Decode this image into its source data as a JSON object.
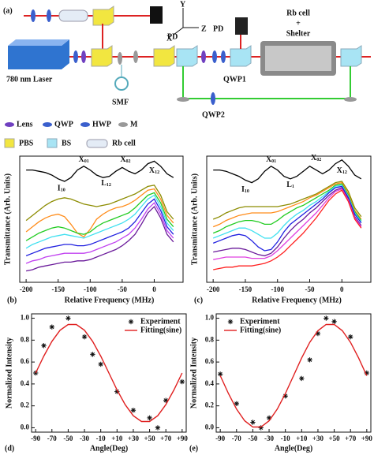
{
  "diagram": {
    "label": "(a)",
    "pd_top": "PD",
    "pd_right": "PD",
    "laser": "780 nm Laser",
    "smf": "SMF",
    "axis_y": "Y",
    "axis_x": "X",
    "axis_z": "Z",
    "rb_cell": "Rb cell",
    "plus": "+",
    "shelter": "Shelter",
    "qwp1": "QWP1",
    "qwp2": "QWP2",
    "legend": [
      "Lens",
      "QWP",
      "HWP",
      "M",
      "PBS",
      "BS",
      "Rb cell"
    ]
  },
  "chart_data": [
    {
      "type": "line",
      "label": "(b)",
      "xlabel": "Relative Frequency (MHz)",
      "ylabel": "Transmittance (Arb. Units)",
      "x": [
        -200,
        -190,
        -180,
        -170,
        -160,
        -150,
        -140,
        -130,
        -120,
        -110,
        -100,
        -90,
        -80,
        -70,
        -60,
        -50,
        -40,
        -30,
        -20,
        -10,
        0,
        10,
        20,
        30
      ],
      "xlim": [
        -210,
        45
      ],
      "xticks": [
        -200,
        -150,
        -100,
        -50,
        0
      ],
      "ylim": [
        0,
        10
      ],
      "series": [
        {
          "color": "#000000",
          "values": [
            8.9,
            8.9,
            8.8,
            8.7,
            8.5,
            8.2,
            8.0,
            8.3,
            8.9,
            9.2,
            8.9,
            8.5,
            8.3,
            8.4,
            8.8,
            9.1,
            8.8,
            8.6,
            8.9,
            9.4,
            9.6,
            9.2,
            8.6,
            8.3
          ]
        },
        {
          "color": "#8c8c00",
          "values": [
            4.9,
            5.3,
            5.7,
            6.1,
            6.4,
            6.6,
            6.7,
            6.6,
            6.4,
            6.2,
            6.1,
            6.0,
            6.1,
            6.2,
            6.4,
            6.6,
            6.8,
            7.0,
            7.3,
            7.6,
            7.7,
            6.9,
            5.6,
            5.0
          ]
        },
        {
          "color": "#ff8c1a",
          "values": [
            4.0,
            4.4,
            4.8,
            5.1,
            5.3,
            5.4,
            5.2,
            4.6,
            3.9,
            3.6,
            4.2,
            5.0,
            5.4,
            5.7,
            5.9,
            6.0,
            6.2,
            6.5,
            6.9,
            7.3,
            7.4,
            6.6,
            5.3,
            4.7
          ]
        },
        {
          "color": "#22cc22",
          "values": [
            3.3,
            3.6,
            3.9,
            4.1,
            4.3,
            4.4,
            4.3,
            4.1,
            3.9,
            3.8,
            4.0,
            4.4,
            4.7,
            4.9,
            5.1,
            5.3,
            5.5,
            5.9,
            6.4,
            6.9,
            7.1,
            6.3,
            5.0,
            4.4
          ]
        },
        {
          "color": "#40e0f0",
          "values": [
            2.7,
            3.0,
            3.2,
            3.4,
            3.6,
            3.7,
            3.8,
            3.7,
            3.6,
            3.5,
            3.7,
            3.9,
            4.1,
            4.3,
            4.5,
            4.7,
            5.0,
            5.4,
            6.0,
            6.6,
            6.9,
            6.0,
            4.7,
            4.1
          ]
        },
        {
          "color": "#2020e0",
          "values": [
            2.1,
            2.3,
            2.5,
            2.7,
            2.8,
            2.9,
            3.0,
            3.0,
            2.9,
            2.9,
            3.0,
            3.2,
            3.4,
            3.6,
            3.8,
            4.0,
            4.3,
            4.8,
            5.5,
            6.2,
            6.6,
            5.7,
            4.4,
            3.8
          ]
        },
        {
          "color": "#c040f0",
          "values": [
            1.5,
            1.7,
            1.8,
            2.0,
            2.1,
            2.2,
            2.3,
            2.3,
            2.3,
            2.3,
            2.4,
            2.6,
            2.8,
            3.0,
            3.2,
            3.5,
            3.8,
            4.3,
            5.0,
            5.8,
            6.3,
            5.4,
            4.1,
            3.5
          ]
        },
        {
          "color": "#6a1a9a",
          "values": [
            0.9,
            1.0,
            1.2,
            1.3,
            1.4,
            1.5,
            1.6,
            1.6,
            1.7,
            1.7,
            1.8,
            2.0,
            2.2,
            2.4,
            2.6,
            2.9,
            3.3,
            3.8,
            4.6,
            5.5,
            6.0,
            5.1,
            3.8,
            3.2
          ]
        }
      ],
      "annotations": [
        {
          "text": "I",
          "sub": "10",
          "x": -145,
          "y": 7.4
        },
        {
          "text": "X",
          "sub": "01",
          "x": -110,
          "y": 9.7
        },
        {
          "text": "L",
          "sub": "12",
          "x": -75,
          "y": 7.8
        },
        {
          "text": "X",
          "sub": "02",
          "x": -45,
          "y": 9.7
        },
        {
          "text": "X",
          "sub": "12",
          "x": 0,
          "y": 8.8
        }
      ]
    },
    {
      "type": "line",
      "label": "(c)",
      "xlabel": "Relative Frequency (MHz)",
      "ylabel": "Transmittance (Arb. Units)",
      "x": [
        -200,
        -190,
        -180,
        -170,
        -160,
        -150,
        -140,
        -130,
        -120,
        -110,
        -100,
        -90,
        -80,
        -70,
        -60,
        -50,
        -40,
        -30,
        -20,
        -10,
        0,
        10,
        20,
        30
      ],
      "xlim": [
        -210,
        45
      ],
      "xticks": [
        -200,
        -150,
        -100,
        -50,
        0
      ],
      "ylim": [
        0,
        10
      ],
      "series": [
        {
          "color": "#000000",
          "values": [
            8.9,
            8.9,
            8.8,
            8.6,
            8.4,
            8.1,
            7.9,
            8.2,
            8.8,
            9.2,
            8.9,
            8.4,
            8.2,
            8.4,
            8.8,
            9.2,
            8.9,
            8.6,
            8.9,
            9.4,
            9.7,
            9.2,
            8.5,
            8.2
          ]
        },
        {
          "color": "#8c8c00",
          "values": [
            5.0,
            5.2,
            5.5,
            5.7,
            5.9,
            6.0,
            6.0,
            6.0,
            6.0,
            6.0,
            6.0,
            6.1,
            6.2,
            6.4,
            6.6,
            6.8,
            7.0,
            7.3,
            7.6,
            7.9,
            8.0,
            7.2,
            5.9,
            5.2
          ]
        },
        {
          "color": "#ff8c1a",
          "values": [
            4.4,
            4.6,
            4.9,
            5.1,
            5.3,
            5.4,
            5.5,
            5.5,
            5.5,
            5.5,
            5.6,
            5.8,
            6.0,
            6.2,
            6.4,
            6.7,
            6.9,
            7.2,
            7.5,
            7.8,
            7.9,
            7.0,
            5.7,
            5.0
          ]
        },
        {
          "color": "#22cc22",
          "values": [
            3.9,
            4.1,
            4.4,
            4.6,
            4.8,
            4.9,
            4.9,
            4.8,
            4.6,
            4.6,
            4.9,
            5.3,
            5.6,
            5.9,
            6.1,
            6.4,
            6.7,
            7.0,
            7.3,
            7.7,
            7.8,
            6.9,
            5.6,
            4.9
          ]
        },
        {
          "color": "#40e0f0",
          "values": [
            3.5,
            3.7,
            3.9,
            4.1,
            4.3,
            4.3,
            4.1,
            3.8,
            3.5,
            3.5,
            3.9,
            4.5,
            5.0,
            5.4,
            5.7,
            6.1,
            6.4,
            6.8,
            7.2,
            7.6,
            7.7,
            6.8,
            5.5,
            4.8
          ]
        },
        {
          "color": "#2020e0",
          "values": [
            3.1,
            3.3,
            3.5,
            3.7,
            3.8,
            3.7,
            3.3,
            2.8,
            2.5,
            2.6,
            3.2,
            4.0,
            4.6,
            5.0,
            5.4,
            5.8,
            6.2,
            6.6,
            7.1,
            7.5,
            7.6,
            6.7,
            5.4,
            4.7
          ]
        },
        {
          "color": "#6a1a9a",
          "values": [
            2.4,
            2.5,
            2.6,
            2.7,
            2.7,
            2.6,
            2.4,
            2.2,
            2.1,
            2.3,
            2.8,
            3.5,
            4.1,
            4.6,
            5.0,
            5.5,
            5.9,
            6.4,
            6.9,
            7.3,
            7.5,
            6.6,
            5.2,
            4.5
          ]
        },
        {
          "color": "#e040e0",
          "values": [
            1.8,
            1.9,
            2.0,
            2.0,
            2.0,
            2.0,
            1.9,
            1.9,
            1.9,
            2.1,
            2.5,
            3.0,
            3.5,
            4.0,
            4.5,
            5.0,
            5.5,
            6.1,
            6.7,
            7.2,
            7.4,
            6.5,
            5.1,
            4.4
          ]
        },
        {
          "color": "#ff2020",
          "values": [
            1.0,
            1.1,
            1.2,
            1.2,
            1.3,
            1.3,
            1.3,
            1.4,
            1.5,
            1.7,
            2.0,
            2.4,
            2.9,
            3.4,
            3.9,
            4.5,
            5.1,
            5.8,
            6.5,
            7.0,
            7.3,
            6.4,
            5.0,
            4.3
          ]
        }
      ],
      "annotations": [
        {
          "text": "I",
          "sub": "10",
          "x": -150,
          "y": 7.3
        },
        {
          "text": "X",
          "sub": "01",
          "x": -110,
          "y": 9.7
        },
        {
          "text": "L",
          "sub": "1",
          "x": -80,
          "y": 7.7
        },
        {
          "text": "X",
          "sub": "02",
          "x": -40,
          "y": 9.8
        },
        {
          "text": "X",
          "sub": "12",
          "x": 0,
          "y": 8.8
        }
      ]
    },
    {
      "type": "scatter",
      "label": "(d)",
      "xlabel": "Angle(Deg)",
      "ylabel": "Normalized Intensity",
      "legend": "upper right",
      "xlim": [
        -95,
        95
      ],
      "ylim": [
        -0.04,
        1.04
      ],
      "xticks": [
        -90,
        -70,
        -50,
        -30,
        -10,
        {
          "value": 10,
          "label": "+10"
        },
        {
          "value": 30,
          "label": "+30"
        },
        {
          "value": 50,
          "label": "+50"
        },
        {
          "value": 70,
          "label": "+70"
        },
        {
          "value": 90,
          "label": "+90"
        }
      ],
      "yticks": [
        {
          "value": 0,
          "label": "0.0"
        },
        0.2,
        0.4,
        0.6,
        0.8,
        {
          "value": 1,
          "label": "1.0"
        }
      ],
      "series": [
        {
          "name": "Experiment",
          "type": "scatter",
          "color": "#111111",
          "x": [
            -90,
            -80,
            -70,
            -50,
            -30,
            -20,
            -10,
            10,
            30,
            50,
            60,
            70,
            90
          ],
          "values": [
            0.5,
            0.75,
            0.92,
            1.0,
            0.83,
            0.67,
            0.58,
            0.33,
            0.16,
            0.09,
            0.0,
            0.25,
            0.42
          ]
        },
        {
          "name": "Fitting(sine)",
          "type": "line",
          "color": "#e02020",
          "x": [
            -90,
            -80,
            -70,
            -60,
            -50,
            -40,
            -30,
            -20,
            -10,
            0,
            10,
            20,
            30,
            40,
            50,
            60,
            70,
            80,
            90
          ],
          "values": [
            0.5,
            0.654,
            0.789,
            0.89,
            0.943,
            0.943,
            0.89,
            0.789,
            0.654,
            0.5,
            0.346,
            0.211,
            0.11,
            0.057,
            0.057,
            0.11,
            0.211,
            0.346,
            0.5
          ]
        }
      ]
    },
    {
      "type": "scatter",
      "label": "(e)",
      "xlabel": "Angle(Deg)",
      "ylabel": "Normalized Intensity",
      "legend": "upper left",
      "xlim": [
        -95,
        95
      ],
      "ylim": [
        -0.04,
        1.04
      ],
      "xticks": [
        -90,
        -70,
        -50,
        -30,
        -10,
        {
          "value": 10,
          "label": "+10"
        },
        {
          "value": 30,
          "label": "+30"
        },
        {
          "value": 50,
          "label": "+50"
        },
        {
          "value": 70,
          "label": "+70"
        },
        {
          "value": 90,
          "label": "+90"
        }
      ],
      "yticks": [
        {
          "value": 0,
          "label": "0.0"
        },
        0.2,
        0.4,
        0.6,
        0.8,
        {
          "value": 1,
          "label": "1.0"
        }
      ],
      "series": [
        {
          "name": "Experiment",
          "type": "scatter",
          "color": "#111111",
          "x": [
            -90,
            -70,
            -50,
            -40,
            -30,
            -10,
            10,
            20,
            30,
            40,
            50,
            70,
            90
          ],
          "values": [
            0.49,
            0.22,
            0.05,
            0.0,
            0.09,
            0.29,
            0.45,
            0.62,
            0.86,
            1.0,
            0.97,
            0.83,
            0.5
          ]
        },
        {
          "name": "Fitting(sine)",
          "type": "line",
          "color": "#e02020",
          "x": [
            -90,
            -80,
            -70,
            -60,
            -50,
            -40,
            -30,
            -20,
            -10,
            0,
            10,
            20,
            30,
            40,
            50,
            60,
            70,
            80,
            90
          ],
          "values": [
            0.475,
            0.3125,
            0.17,
            0.064,
            0.007,
            0.007,
            0.064,
            0.17,
            0.3125,
            0.475,
            0.6375,
            0.78,
            0.886,
            0.943,
            0.943,
            0.886,
            0.78,
            0.6375,
            0.475
          ]
        }
      ]
    }
  ]
}
